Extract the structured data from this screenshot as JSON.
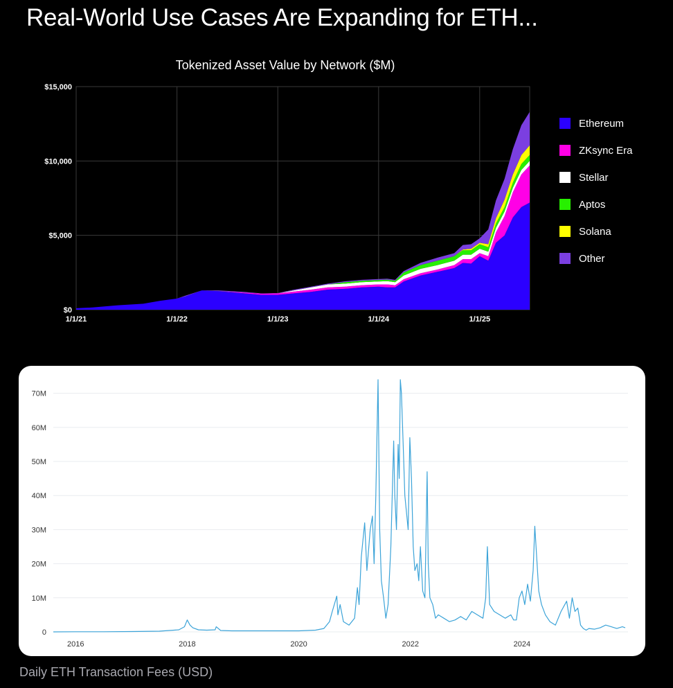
{
  "headline": "Real-World Use Cases Are Expanding for ETH...",
  "caption": "Daily ETH Transaction Fees (USD)",
  "chart_data": [
    {
      "type": "area",
      "stacked": true,
      "title": "Tokenized Asset Value by Network ($M)",
      "xlabel": "",
      "ylabel": "",
      "x_ticks": [
        "1/1/21",
        "1/1/22",
        "1/1/23",
        "1/1/24",
        "1/1/25"
      ],
      "y_ticks": [
        "$15,000",
        "$10,000",
        "$5,000",
        "$0"
      ],
      "y_tick_values": [
        15000,
        10000,
        5000,
        0
      ],
      "ylim": [
        0,
        15000
      ],
      "xlim": [
        "2021-01-01",
        "2025-07-01"
      ],
      "grid": true,
      "legend_position": "right",
      "x": [
        "2021-01-01",
        "2021-03-01",
        "2021-06-01",
        "2021-09-01",
        "2021-11-01",
        "2022-01-01",
        "2022-02-01",
        "2022-04-01",
        "2022-06-01",
        "2022-09-01",
        "2022-11-01",
        "2023-01-01",
        "2023-03-01",
        "2023-05-01",
        "2023-07-01",
        "2023-09-01",
        "2023-11-01",
        "2024-01-01",
        "2024-02-01",
        "2024-03-01",
        "2024-04-01",
        "2024-06-01",
        "2024-08-01",
        "2024-10-01",
        "2024-11-01",
        "2024-12-01",
        "2025-01-01",
        "2025-02-01",
        "2025-03-01",
        "2025-04-01",
        "2025-05-01",
        "2025-06-01",
        "2025-07-01"
      ],
      "series": [
        {
          "name": "Ethereum",
          "color": "#2b00ff",
          "values": [
            100,
            150,
            300,
            400,
            600,
            750,
            900,
            1300,
            1250,
            1100,
            1000,
            1000,
            1100,
            1200,
            1350,
            1400,
            1500,
            1550,
            1500,
            1500,
            1900,
            2300,
            2550,
            2800,
            3150,
            3100,
            3600,
            3300,
            4500,
            5000,
            6200,
            6900,
            7200
          ]
        },
        {
          "name": "ZKsync Era",
          "color": "#ff00e6",
          "values": [
            0,
            0,
            0,
            0,
            0,
            0,
            0,
            0,
            0,
            50,
            80,
            100,
            120,
            150,
            150,
            150,
            150,
            150,
            200,
            150,
            150,
            150,
            150,
            200,
            250,
            300,
            200,
            300,
            700,
            1300,
            1700,
            2200,
            2500
          ]
        },
        {
          "name": "Stellar",
          "color": "#ffffff",
          "values": [
            0,
            0,
            0,
            0,
            0,
            0,
            0,
            0,
            0,
            0,
            0,
            0,
            80,
            150,
            200,
            200,
            200,
            200,
            220,
            200,
            250,
            300,
            300,
            300,
            300,
            300,
            300,
            300,
            300,
            300,
            300,
            300,
            300
          ]
        },
        {
          "name": "Aptos",
          "color": "#27f000",
          "values": [
            0,
            0,
            0,
            0,
            0,
            0,
            0,
            0,
            0,
            0,
            0,
            0,
            0,
            0,
            0,
            100,
            100,
            100,
            100,
            100,
            200,
            250,
            300,
            300,
            300,
            300,
            300,
            300,
            300,
            300,
            350,
            400,
            400
          ]
        },
        {
          "name": "Solana",
          "color": "#ffff00",
          "values": [
            0,
            0,
            0,
            0,
            0,
            0,
            0,
            0,
            0,
            0,
            0,
            0,
            0,
            0,
            0,
            0,
            0,
            0,
            0,
            0,
            0,
            0,
            0,
            0,
            50,
            100,
            100,
            200,
            350,
            500,
            550,
            600,
            650
          ]
        },
        {
          "name": "Other",
          "color": "#7b3fe0",
          "values": [
            0,
            0,
            0,
            0,
            0,
            0,
            50,
            0,
            50,
            50,
            20,
            20,
            50,
            50,
            50,
            60,
            60,
            60,
            60,
            60,
            100,
            150,
            200,
            200,
            300,
            300,
            300,
            1000,
            1200,
            1400,
            1700,
            2000,
            2250
          ]
        }
      ]
    },
    {
      "type": "line",
      "title": "",
      "xlabel": "",
      "ylabel": "",
      "x_ticks": [
        "2016",
        "2018",
        "2020",
        "2022",
        "2024"
      ],
      "y_ticks": [
        "70M",
        "60M",
        "50M",
        "40M",
        "30M",
        "20M",
        "10M",
        "0"
      ],
      "y_tick_values": [
        70,
        60,
        50,
        40,
        30,
        20,
        10,
        0
      ],
      "y_unit": "M USD",
      "ylim": [
        0,
        74
      ],
      "xlim": [
        2015.6,
        2025.9
      ],
      "grid": true,
      "series": [
        {
          "color": "#3ba3d8",
          "x": [
            2015.6,
            2016.0,
            2016.5,
            2017.0,
            2017.5,
            2017.85,
            2017.95,
            2018.0,
            2018.05,
            2018.1,
            2018.2,
            2018.35,
            2018.5,
            2018.52,
            2018.6,
            2018.8,
            2019.0,
            2019.5,
            2020.0,
            2020.3,
            2020.45,
            2020.55,
            2020.6,
            2020.68,
            2020.7,
            2020.74,
            2020.8,
            2020.9,
            2021.0,
            2021.05,
            2021.08,
            2021.12,
            2021.18,
            2021.22,
            2021.28,
            2021.32,
            2021.35,
            2021.38,
            2021.42,
            2021.45,
            2021.48,
            2021.52,
            2021.56,
            2021.6,
            2021.65,
            2021.7,
            2021.72,
            2021.75,
            2021.78,
            2021.8,
            2021.82,
            2021.84,
            2021.87,
            2021.9,
            2021.93,
            2021.96,
            2021.99,
            2022.02,
            2022.05,
            2022.08,
            2022.12,
            2022.15,
            2022.18,
            2022.22,
            2022.26,
            2022.3,
            2022.32,
            2022.35,
            2022.4,
            2022.45,
            2022.5,
            2022.6,
            2022.7,
            2022.8,
            2022.9,
            2023.0,
            2023.1,
            2023.2,
            2023.3,
            2023.35,
            2023.38,
            2023.42,
            2023.5,
            2023.6,
            2023.7,
            2023.8,
            2023.85,
            2023.9,
            2023.95,
            2024.0,
            2024.05,
            2024.1,
            2024.15,
            2024.2,
            2024.23,
            2024.27,
            2024.3,
            2024.35,
            2024.42,
            2024.5,
            2024.6,
            2024.7,
            2024.8,
            2024.85,
            2024.9,
            2024.95,
            2025.0,
            2025.05,
            2025.1,
            2025.15,
            2025.2,
            2025.3,
            2025.4,
            2025.5,
            2025.6,
            2025.7,
            2025.8,
            2025.85
          ],
          "y": [
            0,
            0.05,
            0.05,
            0.1,
            0.2,
            0.6,
            1.5,
            3.5,
            2.0,
            1.2,
            0.6,
            0.5,
            0.6,
            1.5,
            0.4,
            0.3,
            0.3,
            0.3,
            0.3,
            0.5,
            1.0,
            3.0,
            6.0,
            10.5,
            5.0,
            8.0,
            3.0,
            2.0,
            4.0,
            13.0,
            8.0,
            22.0,
            32.0,
            18.0,
            30.0,
            34.0,
            20.0,
            40.0,
            74.0,
            30.0,
            15.0,
            10.0,
            4.0,
            8.0,
            25.0,
            56.0,
            40.0,
            30.0,
            55.0,
            45.0,
            74.0,
            70.0,
            55.0,
            40.0,
            35.0,
            30.0,
            57.0,
            45.0,
            25.0,
            18.0,
            20.0,
            15.0,
            25.0,
            12.0,
            10.0,
            47.0,
            20.0,
            10.0,
            8.0,
            4.0,
            5.0,
            4.0,
            3.0,
            3.5,
            4.5,
            3.5,
            6.0,
            5.0,
            4.0,
            10.0,
            25.0,
            8.0,
            6.0,
            5.0,
            4.0,
            5.0,
            3.5,
            3.5,
            10.0,
            12.0,
            8.0,
            14.0,
            9.0,
            18.0,
            31.0,
            20.0,
            12.0,
            8.0,
            5.0,
            3.0,
            2.0,
            6.0,
            9.0,
            4.0,
            10.0,
            6.0,
            7.0,
            2.0,
            1.0,
            0.5,
            1.0,
            0.8,
            1.2,
            2.0,
            1.5,
            1.0,
            1.5,
            1.2
          ]
        }
      ]
    }
  ]
}
